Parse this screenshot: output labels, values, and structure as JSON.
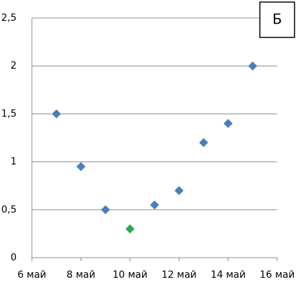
{
  "chart_data": {
    "type": "line",
    "annotation": "Б",
    "x": [
      7,
      8,
      9,
      10,
      11,
      12,
      13,
      14,
      15
    ],
    "series": [
      {
        "color": "#4a7ebb",
        "marker_colors": [
          "#4a7ebb",
          "#4a7ebb",
          "#4a7ebb",
          "#2ea84f",
          "#4a7ebb",
          "#4a7ebb",
          "#4a7ebb",
          "#4a7ebb",
          "#4a7ebb"
        ],
        "values": [
          1.5,
          0.95,
          0.5,
          0.3,
          0.55,
          0.7,
          1.2,
          1.4,
          2.0
        ]
      }
    ],
    "xlim": [
      6,
      16
    ],
    "xticks": [
      {
        "value": 6,
        "label": "6 май"
      },
      {
        "value": 8,
        "label": "8 май"
      },
      {
        "value": 10,
        "label": "10 май"
      },
      {
        "value": 12,
        "label": "12 май"
      },
      {
        "value": 14,
        "label": "14 май"
      },
      {
        "value": 16,
        "label": "16 май"
      }
    ],
    "ylim": [
      0,
      2.5
    ],
    "yticks": [
      0,
      {
        "value": 0.5,
        "label": "0,5"
      },
      1,
      {
        "value": 1.5,
        "label": "1,5"
      },
      2,
      {
        "value": 2.5,
        "label": "2,5"
      }
    ],
    "grid": true
  }
}
